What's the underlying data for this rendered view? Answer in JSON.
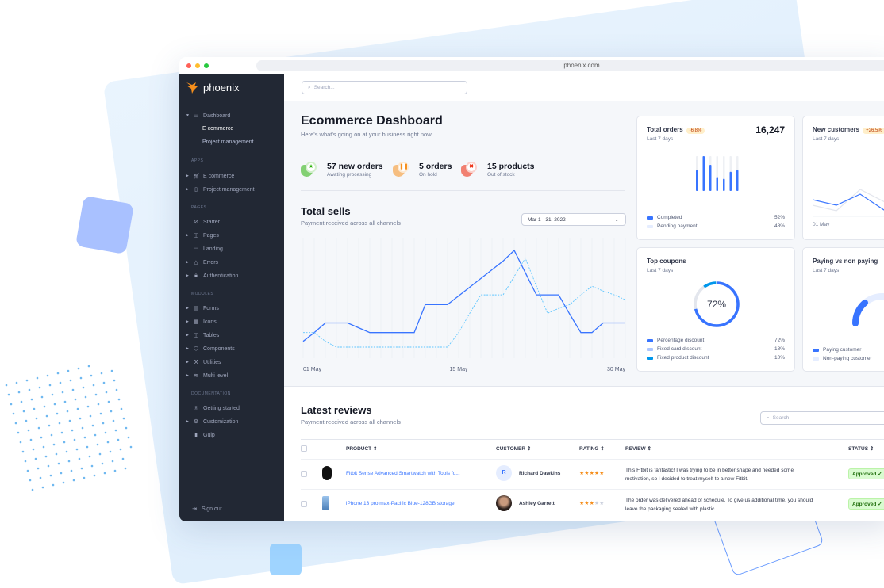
{
  "browser": {
    "url": "phoenix.com"
  },
  "sidebar": {
    "brand": "phoenix",
    "dashboard": {
      "label": "Dashboard",
      "children": [
        "E commerce",
        "Project management"
      ]
    },
    "sections": [
      {
        "title": "APPS",
        "items": [
          "E commerce",
          "Project management"
        ]
      },
      {
        "title": "PAGES",
        "items": [
          "Starter",
          "Pages",
          "Landing",
          "Errors",
          "Authentication"
        ]
      },
      {
        "title": "MODULES",
        "items": [
          "Forms",
          "Icons",
          "Tables",
          "Components",
          "Utilities",
          "Multi level"
        ]
      },
      {
        "title": "DOCUMENTATION",
        "items": [
          "Getting started",
          "Customization",
          "Gulp"
        ]
      }
    ],
    "sign_out": "Sign out"
  },
  "topbar": {
    "search_placeholder": "Search..."
  },
  "header": {
    "title": "Ecommerce Dashboard",
    "subtitle": "Here's what's going on at your business right now"
  },
  "stats": [
    {
      "title": "57 new orders",
      "sub": "Awating processing",
      "color": "#25b003",
      "icon": "star-icon"
    },
    {
      "title": "5 orders",
      "sub": "On hold",
      "color": "#f68f1c",
      "icon": "pause-icon"
    },
    {
      "title": "15 products",
      "sub": "Out of stock",
      "color": "#ec1f00",
      "icon": "x-icon"
    }
  ],
  "total_sells": {
    "title": "Total sells",
    "subtitle": "Payment received across all channels",
    "date_range": "Mar 1 - 31, 2022"
  },
  "chart_data": [
    {
      "type": "line",
      "x_ticks": [
        "01 May",
        "15 May",
        "30 May"
      ],
      "days": 30,
      "series": [
        {
          "style": "solid",
          "color": "#3874ff",
          "values": [
            6,
            15,
            25,
            25,
            25,
            20,
            15,
            15,
            15,
            15,
            15,
            44,
            44,
            44,
            53,
            62,
            71,
            80,
            89,
            100,
            77,
            54,
            54,
            54,
            34,
            15,
            15,
            25,
            25,
            25
          ]
        },
        {
          "style": "dashed",
          "color": "#60c6ff",
          "values": [
            15,
            15,
            6,
            0,
            0,
            0,
            0,
            0,
            0,
            0,
            0,
            0,
            0,
            0,
            15,
            35,
            54,
            54,
            54,
            73,
            92,
            63,
            35,
            40,
            44,
            54,
            63,
            58,
            54,
            49
          ]
        }
      ],
      "grid": "vertical"
    },
    {
      "type": "bar",
      "title": "Total orders",
      "values": [
        60,
        100,
        75,
        40,
        35,
        55,
        60
      ],
      "max": 100
    }
  ],
  "cards": {
    "total_orders": {
      "title": "Total orders",
      "badge": "-6.8%",
      "period": "Last 7 days",
      "value": "16,247",
      "legend": [
        {
          "label": "Completed",
          "value": "52%",
          "color": "#3874ff"
        },
        {
          "label": "Pending payment",
          "value": "48%",
          "color": "#e5edff"
        }
      ]
    },
    "new_customers": {
      "title": "New customers",
      "badge": "+26.5%",
      "period": "Last 7 days",
      "x_tick": "01 May"
    },
    "top_coupons": {
      "title": "Top coupons",
      "period": "Last 7 days",
      "center": "72%",
      "legend": [
        {
          "label": "Percentage discount",
          "value": "72%",
          "color": "#3874ff"
        },
        {
          "label": "Fixed card discount",
          "value": "18%",
          "color": "#adc6ff"
        },
        {
          "label": "Fixed product discount",
          "value": "10%",
          "color": "#0097eb"
        }
      ]
    },
    "paying": {
      "title": "Paying vs non paying",
      "period": "Last 7 days",
      "paying_share": 30,
      "legend": [
        {
          "label": "Paying customer",
          "color": "#3874ff"
        },
        {
          "label": "Non-paying customer",
          "color": "#e5edff"
        }
      ]
    }
  },
  "reviews": {
    "title": "Latest reviews",
    "subtitle": "Payment received across all channels",
    "search_placeholder": "Search",
    "columns": [
      "PRODUCT",
      "CUSTOMER",
      "RATING",
      "REVIEW",
      "STATUS"
    ],
    "rows": [
      {
        "product": "Fitbit Sense Advanced Smartwatch with Tools fo...",
        "customer": "Richard Dawkins",
        "initial": "R",
        "rating": 5,
        "review": [
          "This Fitbit is fantastic! I was trying to be in better shape and needed some",
          "motivation, so I decided to treat myself to a new Fitbit."
        ],
        "status": "Approved"
      },
      {
        "product": "iPhone 13 pro max-Pacific Blue-128GB storage",
        "customer": "Ashley Garrett",
        "rating": 3,
        "review": [
          "The order was delivered ahead of schedule. To give us additional time, you should",
          "leave the packaging sealed with plastic."
        ],
        "status": "Approved"
      }
    ]
  }
}
